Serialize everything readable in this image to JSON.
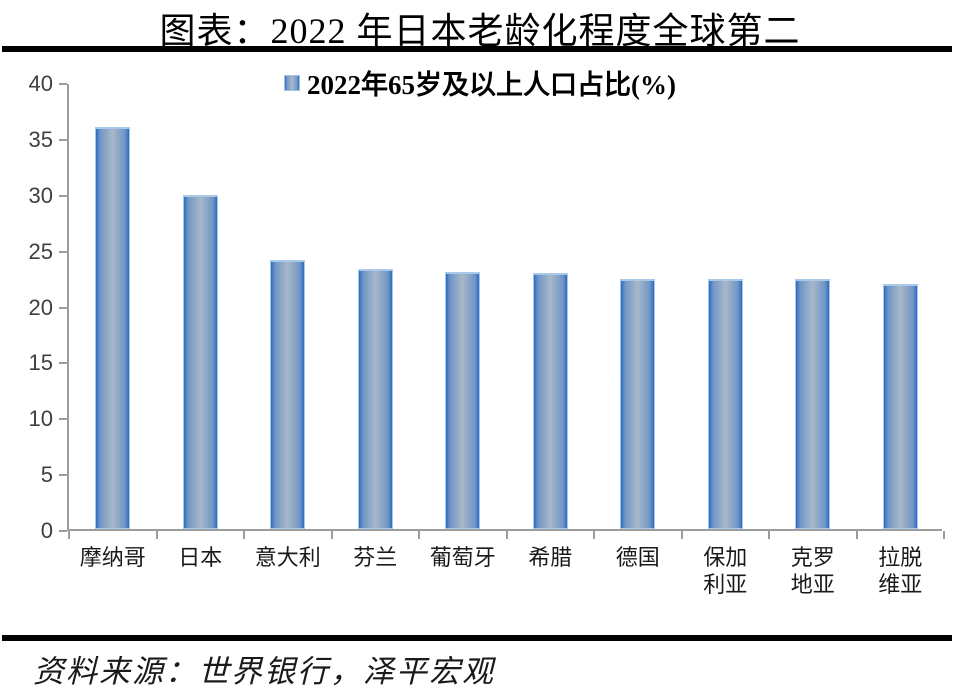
{
  "title": "图表：2022 年日本老龄化程度全球第二",
  "source": "资料来源：世界银行，泽平宏观",
  "chart_data": {
    "type": "bar",
    "title": "图表：2022 年日本老龄化程度全球第二",
    "legend": "2022年65岁及以上人口占比(%)",
    "legend_position": "top-center",
    "categories": [
      "摩纳哥",
      "日本",
      "意大利",
      "芬兰",
      "葡萄牙",
      "希腊",
      "德国",
      "保加利亚",
      "克罗地亚",
      "拉脱维亚"
    ],
    "tick_labels": [
      "摩纳哥",
      "日本",
      "意大利",
      "芬兰",
      "葡萄牙",
      "希腊",
      "德国",
      "保加\n利亚",
      "克罗\n地亚",
      "拉脱\n维亚"
    ],
    "values": [
      36.0,
      29.9,
      24.1,
      23.3,
      23.0,
      22.9,
      22.4,
      22.4,
      22.4,
      21.9
    ],
    "xlabel": "",
    "ylabel": "",
    "ylim": [
      0,
      40
    ],
    "ytick_step": 5,
    "grid": "off",
    "colors": {
      "bar_edge": "#2a6bc2",
      "bar_mid": "#6f95c6",
      "bar_center": "#a8b8c8",
      "bar_border": "#a9c9e8",
      "axis": "#9c9c9c",
      "ytick_text": "#3f3f3f"
    }
  }
}
